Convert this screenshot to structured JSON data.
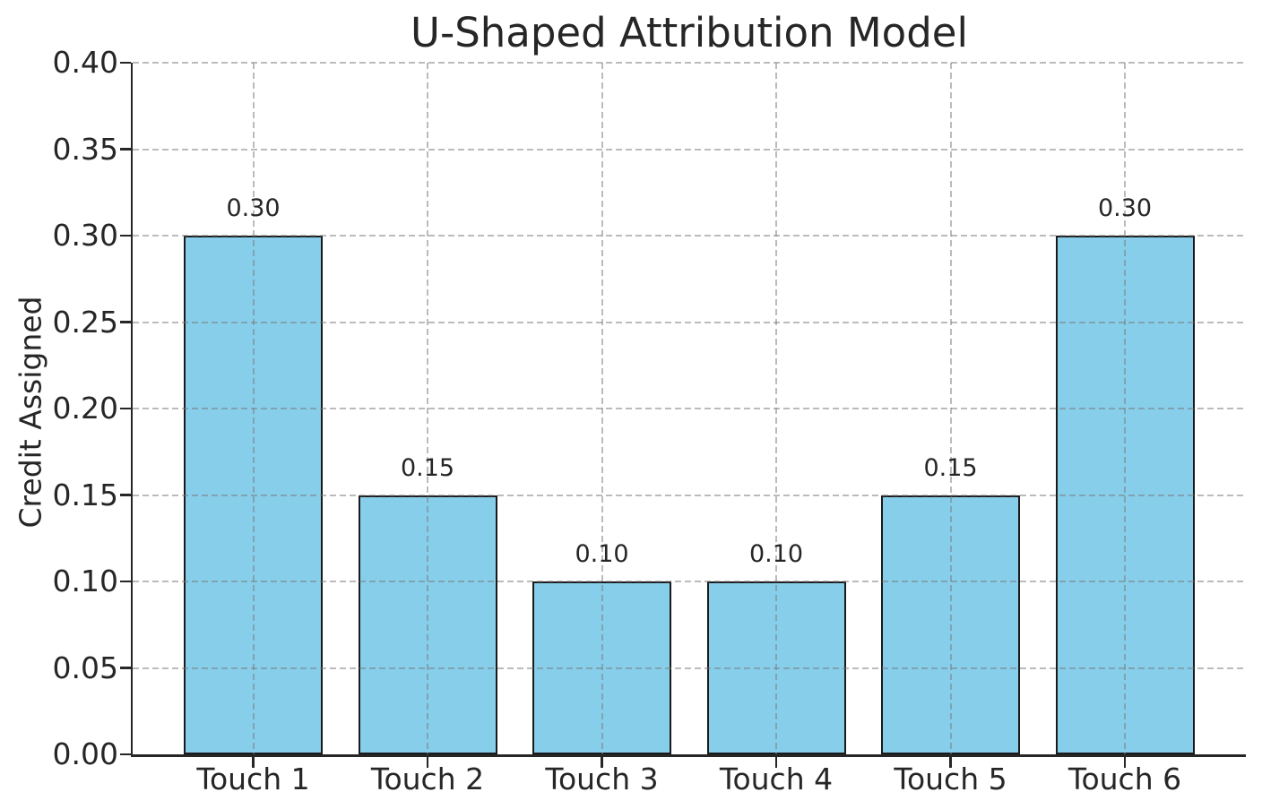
{
  "chart_data": {
    "type": "bar",
    "title": "U-Shaped Attribution Model",
    "xlabel": "",
    "ylabel": "Credit Assigned",
    "categories": [
      "Touch 1",
      "Touch 2",
      "Touch 3",
      "Touch 4",
      "Touch 5",
      "Touch 6"
    ],
    "values": [
      0.3,
      0.15,
      0.1,
      0.1,
      0.15,
      0.3
    ],
    "bar_value_labels": [
      "0.30",
      "0.15",
      "0.10",
      "0.10",
      "0.15",
      "0.30"
    ],
    "ylim": [
      0.0,
      0.4
    ],
    "ytick_labels": [
      "0.00",
      "0.05",
      "0.10",
      "0.15",
      "0.20",
      "0.25",
      "0.30",
      "0.35",
      "0.40"
    ],
    "grid": "dashed horizontal and vertical gridlines drawn on top of bars",
    "legend_position": "none",
    "colors": {
      "bar_fill": "#87CEEB",
      "bar_edge": "#1a1a1a",
      "grid": "#b0b0b0",
      "text": "#262626",
      "spine": "#262626",
      "background": "#ffffff"
    }
  }
}
